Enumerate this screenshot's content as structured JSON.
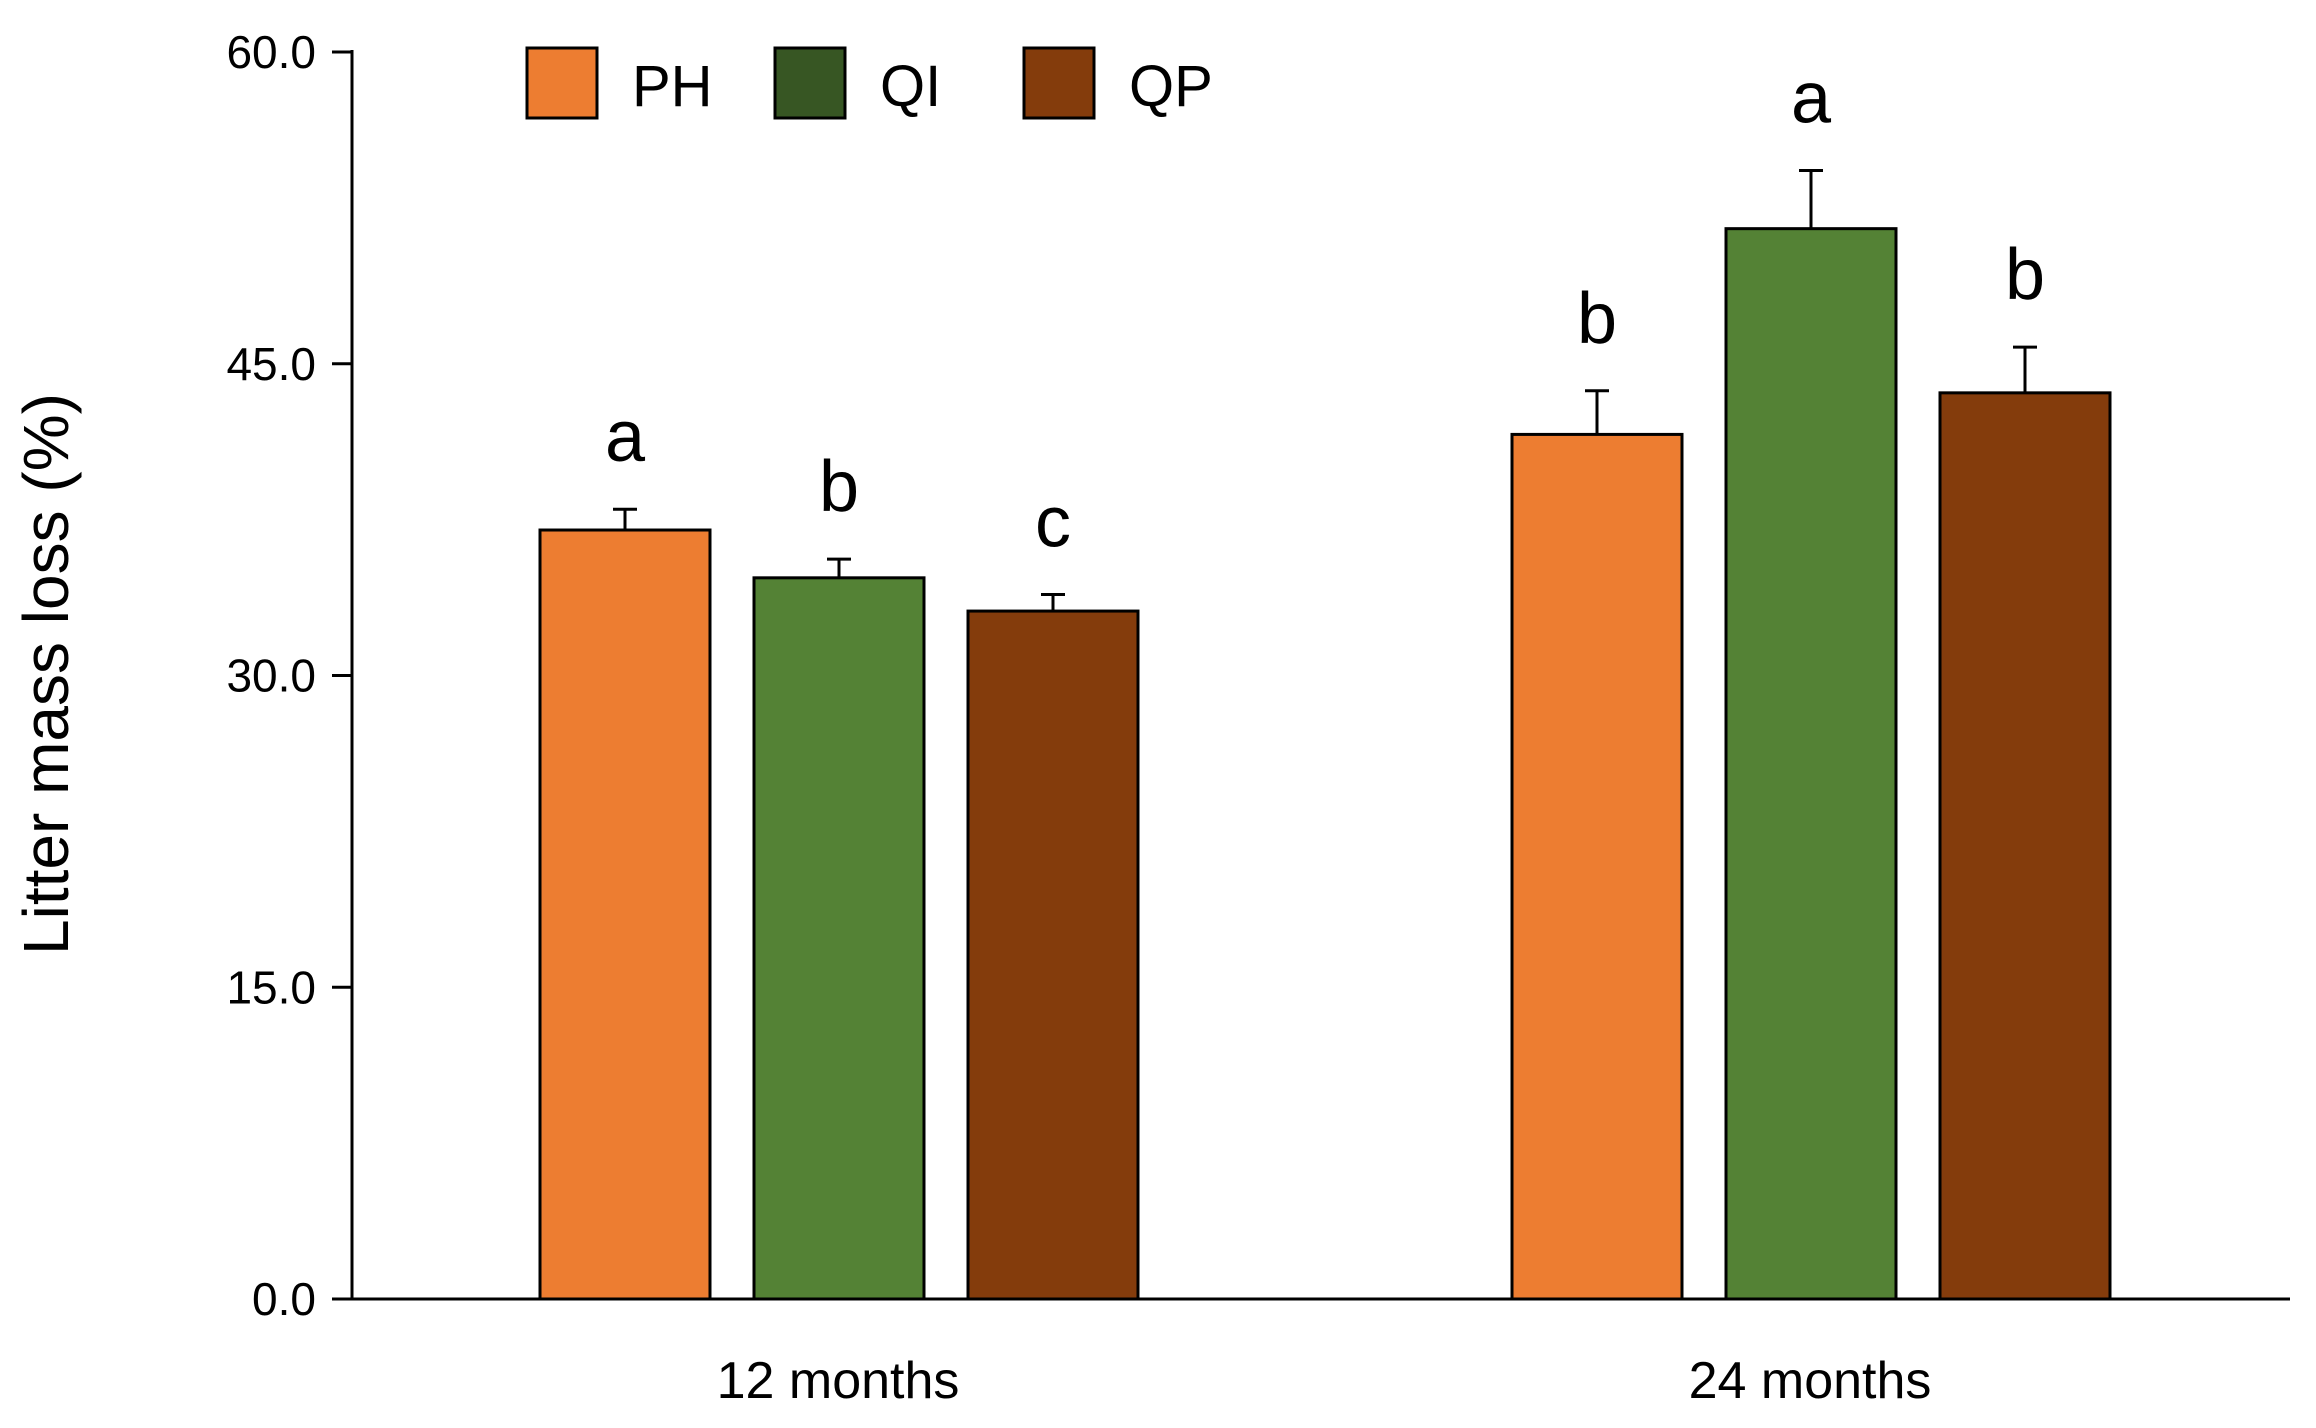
{
  "chart_data": {
    "type": "bar",
    "title": "",
    "xlabel": "",
    "ylabel": "Litter mass loss (%)",
    "ylim": [
      0,
      60
    ],
    "yticks": [
      0,
      15,
      30,
      45,
      60
    ],
    "ytick_labels": [
      "0.0",
      "15.0",
      "30.0",
      "45.0",
      "60.0"
    ],
    "grid": false,
    "legend_position": "top-left",
    "categories": [
      "12 months",
      "24 months"
    ],
    "series": [
      {
        "name": "PH",
        "color": "#ed7d31",
        "values": [
          37.0,
          41.6
        ],
        "errors": [
          1.0,
          2.1
        ],
        "significance": [
          "a",
          "b"
        ]
      },
      {
        "name": "QI",
        "color": "#548235",
        "values": [
          34.7,
          51.5
        ],
        "errors": [
          0.9,
          2.8
        ],
        "significance": [
          "b",
          "a"
        ]
      },
      {
        "name": "QP",
        "color": "#843c0c",
        "values": [
          33.1,
          43.6
        ],
        "errors": [
          0.8,
          2.2
        ],
        "significance": [
          "c",
          "b"
        ]
      }
    ],
    "legend": [
      {
        "name": "PH",
        "color": "#ed7d31"
      },
      {
        "name": "QI",
        "color": "#375623"
      },
      {
        "name": "QP",
        "color": "#843c0c"
      }
    ]
  }
}
